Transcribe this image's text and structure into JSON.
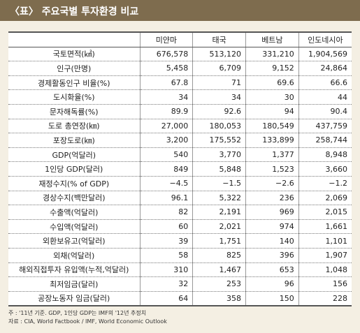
{
  "header": {
    "title": "〈표〉 주요국별 투자환경 비교"
  },
  "table": {
    "columns": [
      "미얀마",
      "태국",
      "베트남",
      "인도네시아"
    ],
    "rows": [
      [
        "국토면적(㎢)",
        "676,578",
        "513,120",
        "331,210",
        "1,904,569"
      ],
      [
        "인구(만명)",
        "5,458",
        "6,709",
        "9,152",
        "24,864"
      ],
      [
        "경제활동인구 비율(%)",
        "67.8",
        "71",
        "69.6",
        "66.6"
      ],
      [
        "도시화율(%)",
        "34",
        "34",
        "30",
        "44"
      ],
      [
        "문자해독률(%)",
        "89.9",
        "92.6",
        "94",
        "90.4"
      ],
      [
        "도로 총연장(㎞)",
        "27,000",
        "180,053",
        "180,549",
        "437,759"
      ],
      [
        "포장도로(㎞)",
        "3,200",
        "175,552",
        "133,899",
        "258,744"
      ],
      [
        "GDP(억달러)",
        "540",
        "3,770",
        "1,377",
        "8,948"
      ],
      [
        "1인당 GDP(달러)",
        "849",
        "5,848",
        "1,523",
        "3,660"
      ],
      [
        "재정수지(% of GDP)",
        "−4.5",
        "−1.5",
        "−2.6",
        "−1.2"
      ],
      [
        "경상수지(백만달러)",
        "96.1",
        "5,322",
        "236",
        "2,069"
      ],
      [
        "수출액(억달러)",
        "82",
        "2,191",
        "969",
        "2,015"
      ],
      [
        "수입액(억달러)",
        "60",
        "2,021",
        "974",
        "1,661"
      ],
      [
        "외환보유고(억달러)",
        "39",
        "1,751",
        "140",
        "1,101"
      ],
      [
        "외채(억달러)",
        "58",
        "825",
        "396",
        "1,907"
      ],
      [
        "해외직접투자 유입액(누적,억달러)",
        "310",
        "1,467",
        "653",
        "1,048"
      ],
      [
        "최저임금(달러)",
        "32",
        "253",
        "96",
        "156"
      ],
      [
        "공장노동자 임금(달러)",
        "64",
        "358",
        "150",
        "228"
      ]
    ]
  },
  "notes": [
    "주 : '11년 기준. GDP, 1인당 GDP는 IMF의 '12년 추정치",
    "자료 : CIA, World Factbook / IMF, World Economic Outlook"
  ]
}
